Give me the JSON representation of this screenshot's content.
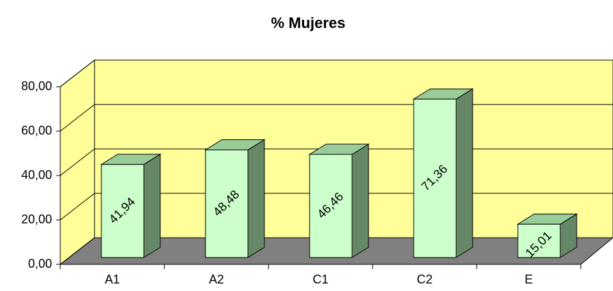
{
  "chart_data": {
    "type": "bar",
    "title": "% Mujeres",
    "categories": [
      "A1",
      "A2",
      "C1",
      "C2",
      "E"
    ],
    "values": [
      41.94,
      48.48,
      46.46,
      71.36,
      15.01
    ],
    "value_labels": [
      "41,94",
      "48,48",
      "46,46",
      "71,36",
      "15,01"
    ],
    "color": "#ccffcc",
    "ylim": [
      0,
      80
    ],
    "yticks": [
      {
        "value": 0,
        "label": "0,00"
      },
      {
        "value": 20,
        "label": "20,00"
      },
      {
        "value": 40,
        "label": "40,00"
      },
      {
        "value": 60,
        "label": "60,00"
      },
      {
        "value": 80,
        "label": "80,00"
      }
    ],
    "grid": true
  }
}
